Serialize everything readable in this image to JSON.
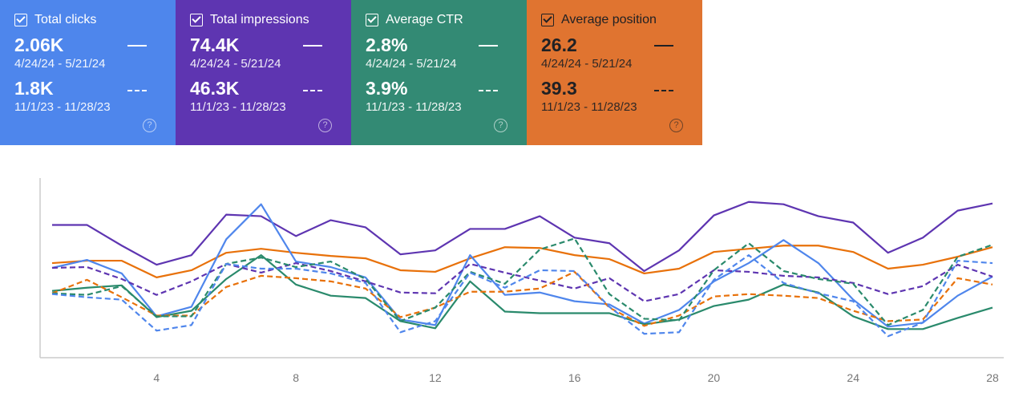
{
  "cards": [
    {
      "label": "Total clicks",
      "current": "2.06K",
      "current_range": "4/24/24 - 5/21/24",
      "previous": "1.8K",
      "previous_range": "11/1/23 - 11/28/23",
      "color": "#4e86ec",
      "checked": true
    },
    {
      "label": "Total impressions",
      "current": "74.4K",
      "current_range": "4/24/24 - 5/21/24",
      "previous": "46.3K",
      "previous_range": "11/1/23 - 11/28/23",
      "color": "#5e35b1",
      "checked": true
    },
    {
      "label": "Average CTR",
      "current": "2.8%",
      "current_range": "4/24/24 - 5/21/24",
      "previous": "3.9%",
      "previous_range": "11/1/23 - 11/28/23",
      "color": "#338a74",
      "checked": true
    },
    {
      "label": "Average position",
      "current": "26.2",
      "current_range": "4/24/24 - 5/21/24",
      "previous": "39.3",
      "previous_range": "11/1/23 - 11/28/23",
      "color": "#e07430",
      "checked": true
    }
  ],
  "help_glyph": "?",
  "chart_data": {
    "type": "line",
    "x": [
      1,
      2,
      3,
      4,
      5,
      6,
      7,
      8,
      9,
      10,
      11,
      12,
      13,
      14,
      15,
      16,
      17,
      18,
      19,
      20,
      21,
      22,
      23,
      24,
      25,
      26,
      27,
      28
    ],
    "xticks": [
      "4",
      "8",
      "12",
      "16",
      "20",
      "24",
      "28"
    ],
    "xtick_values": [
      4,
      8,
      12,
      16,
      20,
      24,
      28
    ],
    "ylim": [
      0,
      225
    ],
    "y_axis_labels": false,
    "grid": false,
    "series": [
      {
        "metric": "impressions-current",
        "color": "#5e35b1",
        "dashed": false,
        "values": [
          166,
          166,
          140,
          116,
          128,
          179,
          177,
          152,
          172,
          163,
          129,
          134,
          161,
          161,
          177,
          150,
          143,
          108,
          134,
          178,
          195,
          192,
          177,
          169,
          131,
          150,
          184,
          193
        ]
      },
      {
        "metric": "position-current",
        "color": "#e8710a",
        "dashed": false,
        "values": [
          118,
          121,
          121,
          100,
          109,
          131,
          136,
          131,
          127,
          124,
          109,
          107,
          124,
          138,
          137,
          128,
          123,
          105,
          111,
          132,
          136,
          140,
          140,
          132,
          111,
          116,
          126,
          138
        ]
      },
      {
        "metric": "clicks-current",
        "color": "#4f86ec",
        "dashed": false,
        "values": [
          112,
          122,
          105,
          51,
          63,
          148,
          192,
          120,
          113,
          100,
          47,
          40,
          128,
          78,
          81,
          70,
          66,
          42,
          59,
          95,
          118,
          147,
          118,
          72,
          38,
          43,
          77,
          101
        ]
      },
      {
        "metric": "ctr-current",
        "color": "#2a8a6c",
        "dashed": false,
        "values": [
          83,
          87,
          90,
          50,
          58,
          98,
          128,
          91,
          77,
          74,
          45,
          36,
          95,
          57,
          55,
          55,
          55,
          41,
          47,
          64,
          72,
          91,
          81,
          51,
          35,
          35,
          49,
          62
        ]
      },
      {
        "metric": "impressions-previous",
        "color": "#5e35b1",
        "dashed": true,
        "values": [
          112,
          113,
          98,
          78,
          95,
          117,
          106,
          118,
          108,
          95,
          81,
          80,
          117,
          106,
          96,
          86,
          99,
          70,
          79,
          109,
          107,
          102,
          100,
          93,
          79,
          89,
          116,
          101
        ]
      },
      {
        "metric": "position-previous",
        "color": "#e8710a",
        "dashed": true,
        "values": [
          80,
          97,
          75,
          52,
          52,
          88,
          102,
          99,
          95,
          86,
          50,
          62,
          82,
          82,
          86,
          107,
          62,
          39,
          52,
          76,
          79,
          77,
          74,
          58,
          45,
          47,
          99,
          91
        ]
      },
      {
        "metric": "ctr-previous",
        "color": "#2a8a6c",
        "dashed": true,
        "values": [
          80,
          78,
          89,
          51,
          51,
          117,
          125,
          113,
          120,
          98,
          45,
          62,
          107,
          92,
          135,
          149,
          79,
          48,
          46,
          109,
          143,
          108,
          98,
          92,
          40,
          59,
          126,
          141
        ]
      },
      {
        "metric": "clicks-previous",
        "color": "#4f86ec",
        "dashed": true,
        "values": [
          79,
          75,
          72,
          33,
          40,
          117,
          111,
          111,
          105,
          93,
          31,
          45,
          106,
          87,
          109,
          108,
          63,
          29,
          31,
          97,
          128,
          93,
          80,
          70,
          26,
          43,
          121,
          118
        ]
      }
    ]
  }
}
